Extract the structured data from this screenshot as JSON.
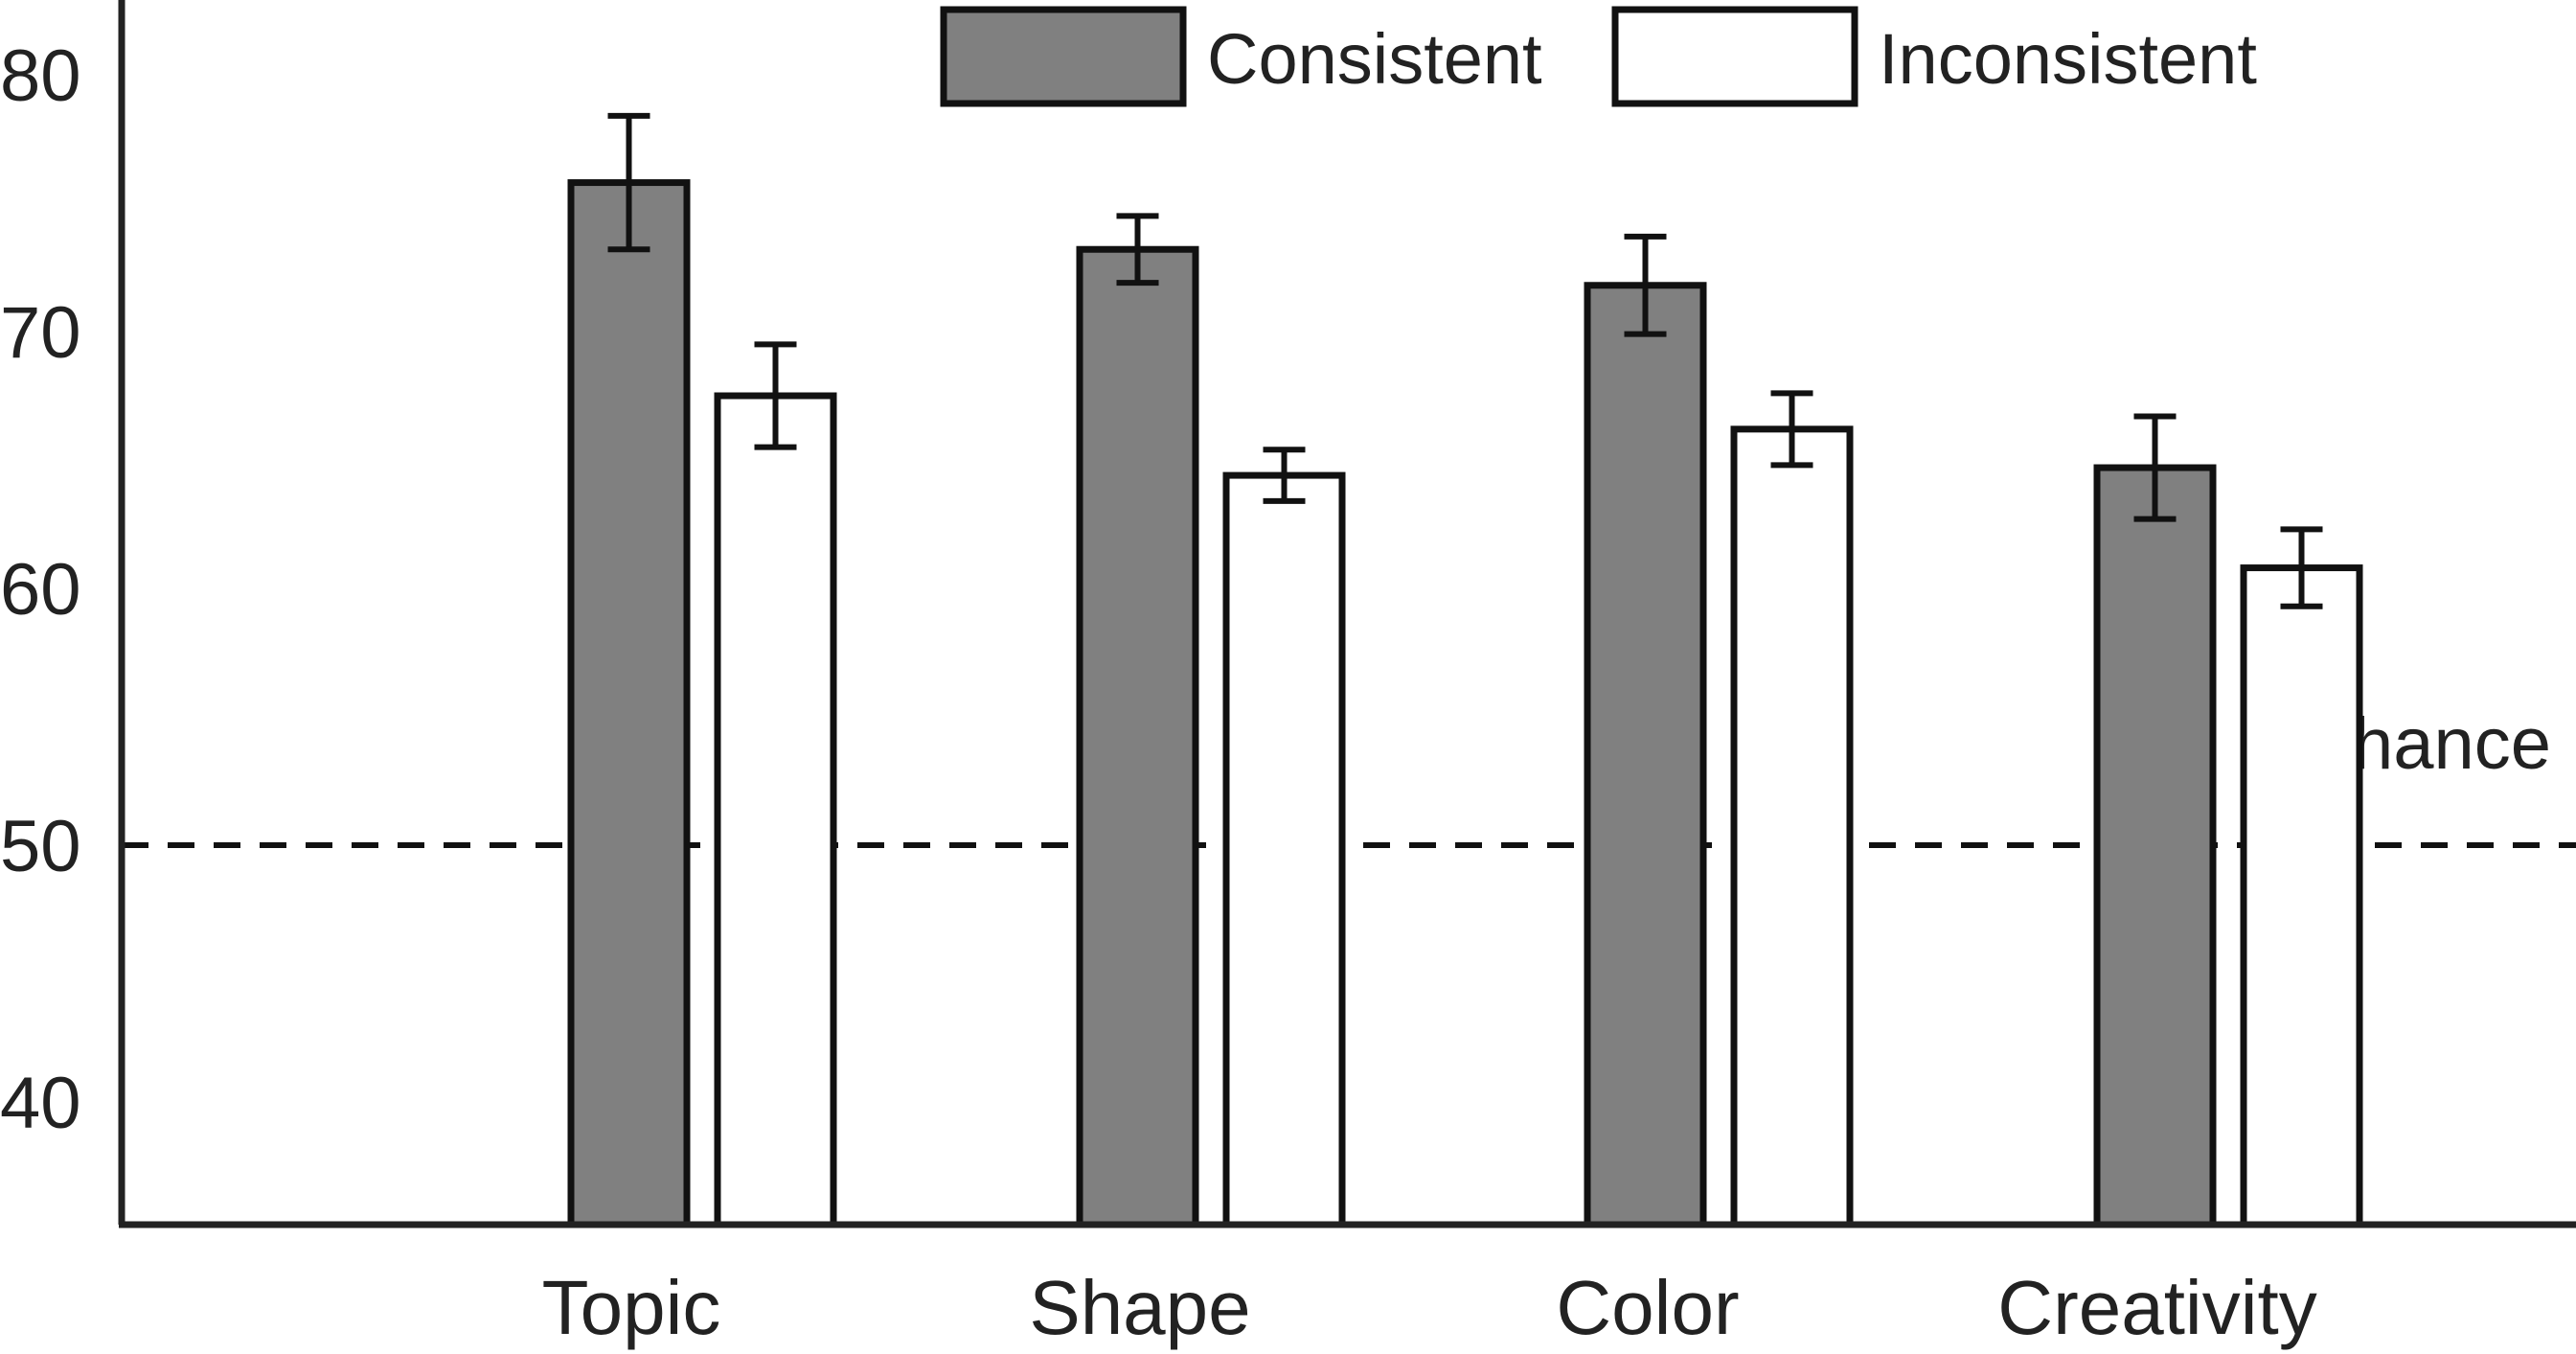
{
  "chart_data": {
    "type": "bar",
    "title": "",
    "xlabel": "",
    "ylabel": "",
    "ylim": [
      35,
      83
    ],
    "yticks": [
      40,
      50,
      60,
      70,
      80
    ],
    "categories": [
      "Topic",
      "Shape",
      "Color",
      "Creativity"
    ],
    "series": [
      {
        "name": "Consistent",
        "color": "#808080",
        "values": [
          75.8,
          73.2,
          71.8,
          64.7
        ],
        "errors": [
          2.6,
          1.3,
          1.9,
          2.0
        ]
      },
      {
        "name": "Inconsistent",
        "color": "#ffffff",
        "values": [
          67.5,
          64.4,
          66.2,
          60.8
        ],
        "errors": [
          2.0,
          1.0,
          1.4,
          1.5
        ]
      }
    ],
    "reference_line": {
      "value": 50,
      "label": "chance",
      "style": "dashed"
    },
    "legend": {
      "position": "top"
    },
    "grid": false
  }
}
